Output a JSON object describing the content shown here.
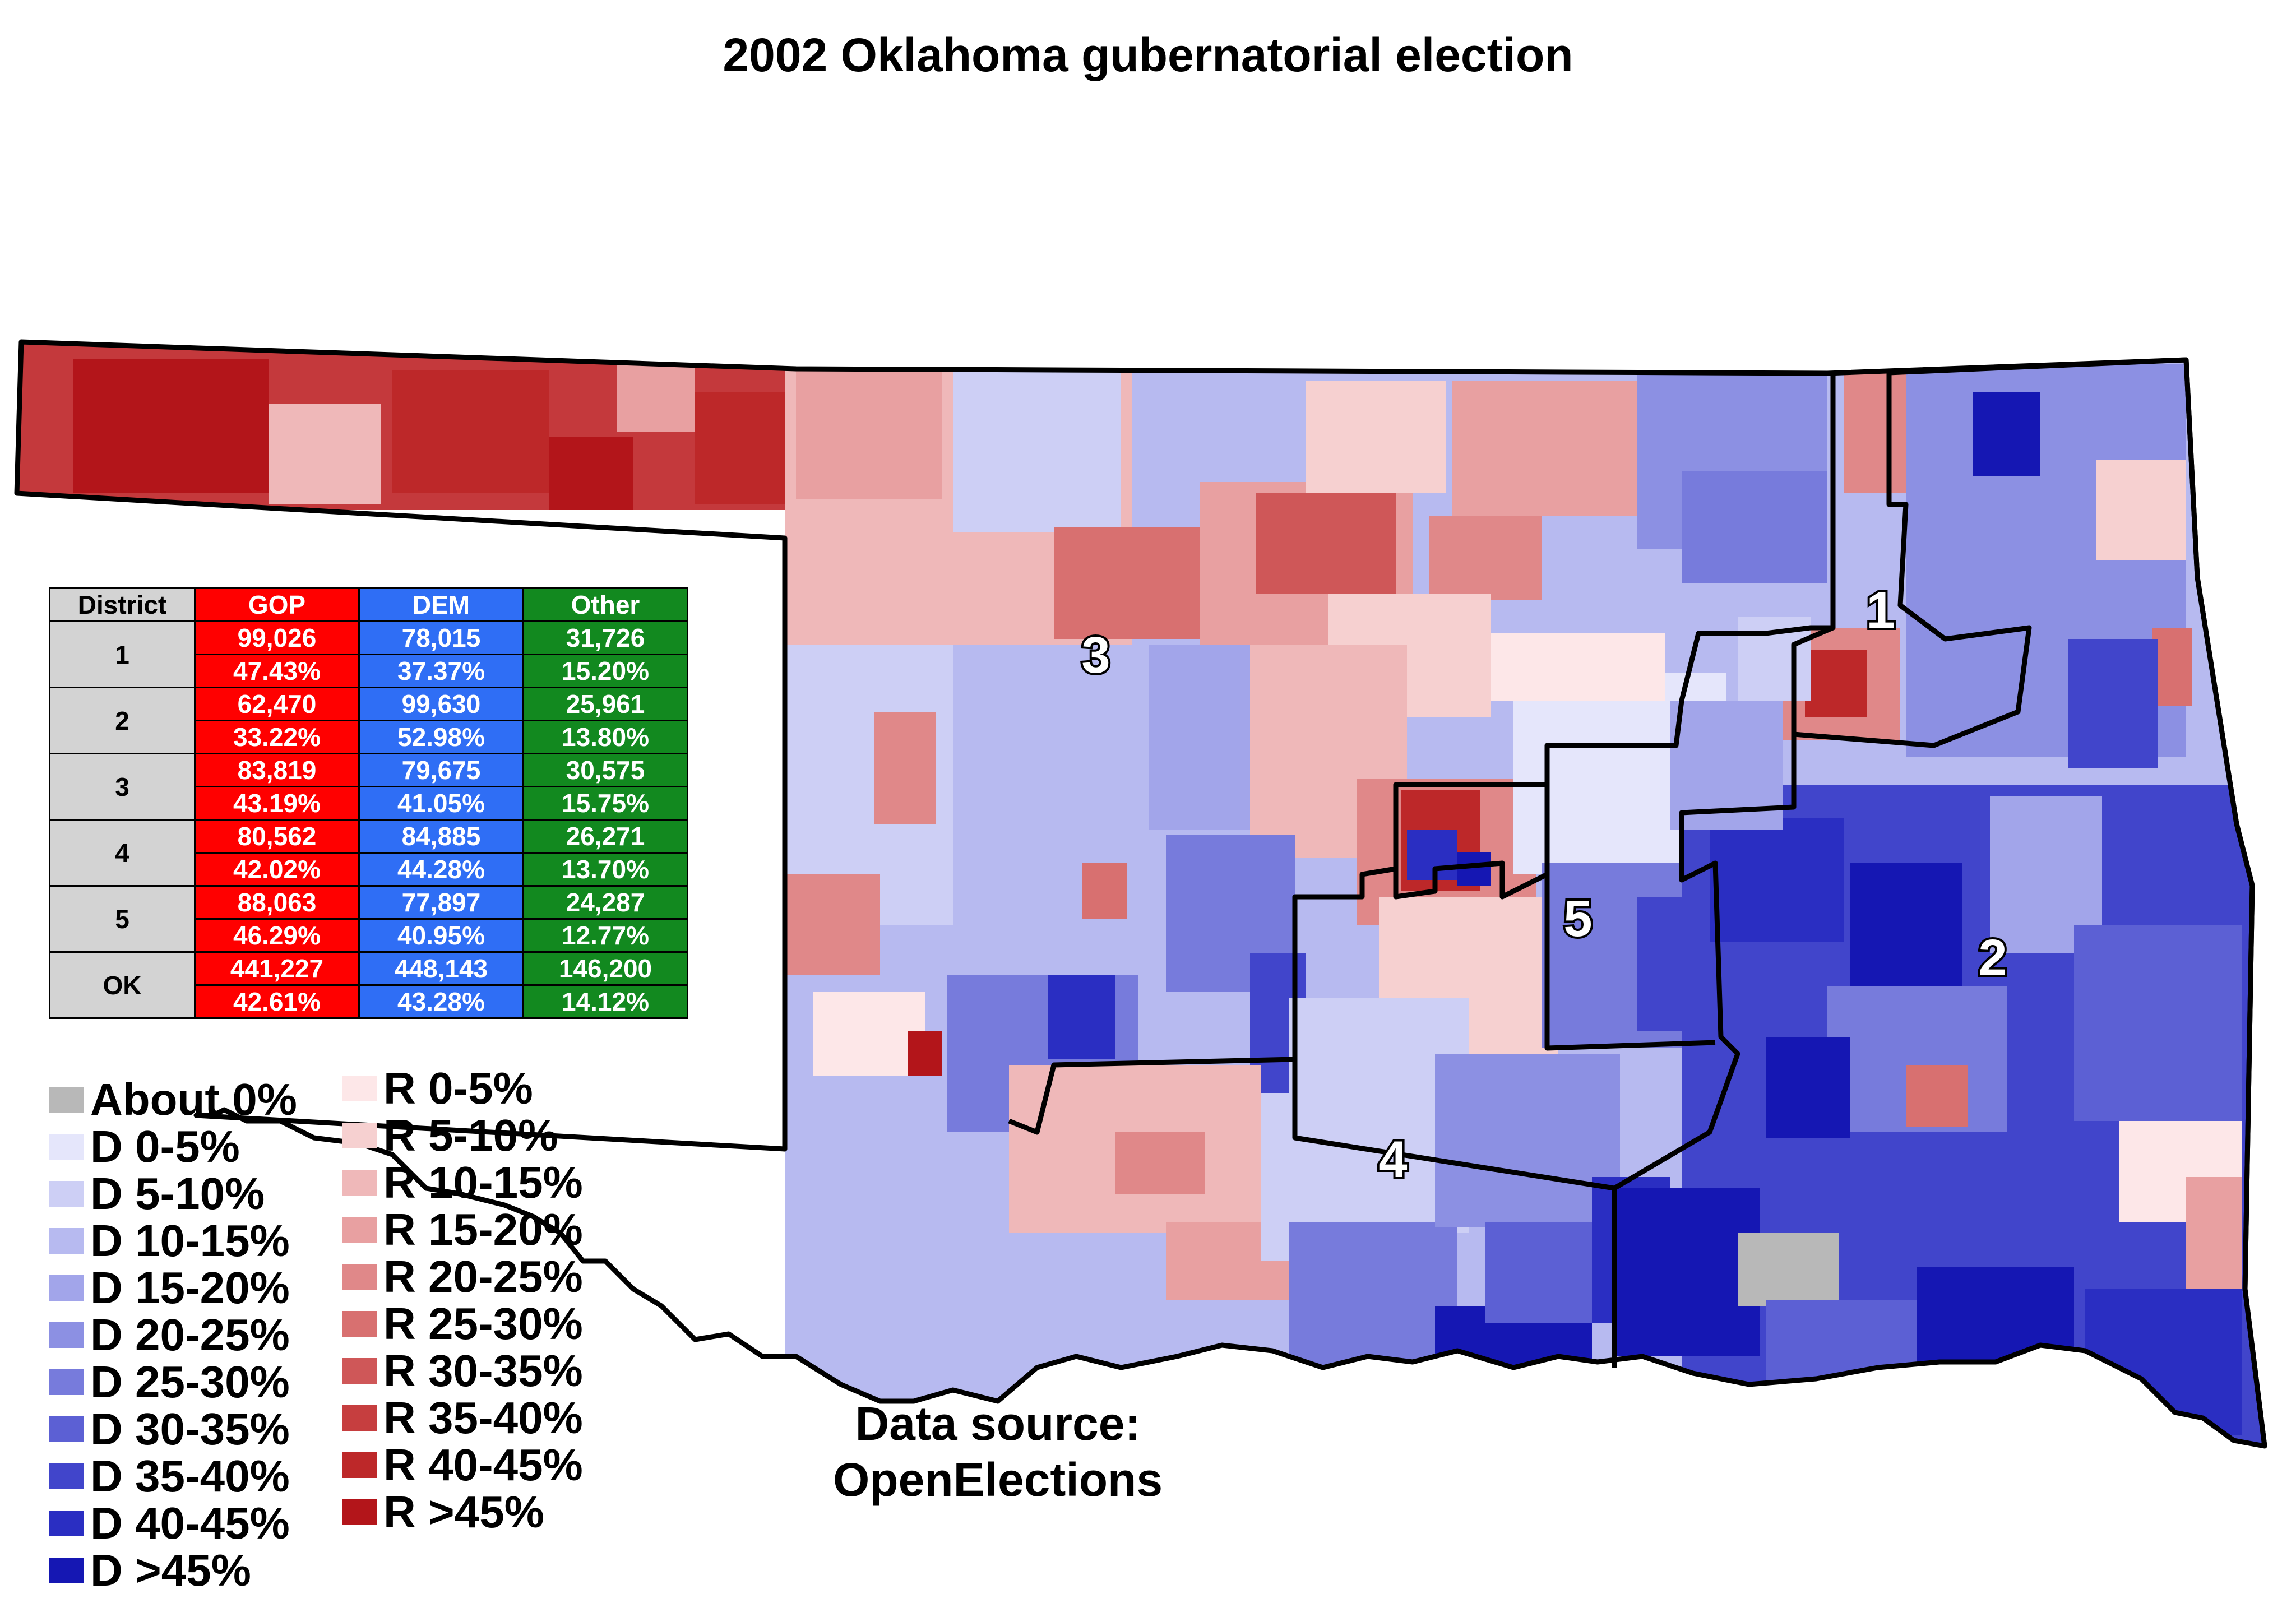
{
  "title": "2002 Oklahoma gubernatorial election",
  "table": {
    "headers": {
      "district": "District",
      "gop": "GOP",
      "dem": "DEM",
      "other": "Other"
    },
    "rows": [
      {
        "district": "1",
        "gop_votes": "99,026",
        "gop_pct": "47.43%",
        "dem_votes": "78,015",
        "dem_pct": "37.37%",
        "other_votes": "31,726",
        "other_pct": "15.20%"
      },
      {
        "district": "2",
        "gop_votes": "62,470",
        "gop_pct": "33.22%",
        "dem_votes": "99,630",
        "dem_pct": "52.98%",
        "other_votes": "25,961",
        "other_pct": "13.80%"
      },
      {
        "district": "3",
        "gop_votes": "83,819",
        "gop_pct": "43.19%",
        "dem_votes": "79,675",
        "dem_pct": "41.05%",
        "other_votes": "30,575",
        "other_pct": "15.75%"
      },
      {
        "district": "4",
        "gop_votes": "80,562",
        "gop_pct": "42.02%",
        "dem_votes": "84,885",
        "dem_pct": "44.28%",
        "other_votes": "26,271",
        "other_pct": "13.70%"
      },
      {
        "district": "5",
        "gop_votes": "88,063",
        "gop_pct": "46.29%",
        "dem_votes": "77,897",
        "dem_pct": "40.95%",
        "other_votes": "24,287",
        "other_pct": "12.77%"
      },
      {
        "district": "OK",
        "gop_votes": "441,227",
        "gop_pct": "42.61%",
        "dem_votes": "448,143",
        "dem_pct": "43.28%",
        "other_votes": "146,200",
        "other_pct": "14.12%"
      }
    ]
  },
  "legend": {
    "dem": [
      {
        "label": "About 0%",
        "color": "#b8b8b8"
      },
      {
        "label": "D 0-5%",
        "color": "#e5e6fb"
      },
      {
        "label": "D 5-10%",
        "color": "#cdcff5"
      },
      {
        "label": "D 10-15%",
        "color": "#b7baf0"
      },
      {
        "label": "D 15-20%",
        "color": "#a2a5ea"
      },
      {
        "label": "D 20-25%",
        "color": "#8c90e3"
      },
      {
        "label": "D 25-30%",
        "color": "#777bdc"
      },
      {
        "label": "D 30-35%",
        "color": "#5c60d4"
      },
      {
        "label": "D 35-40%",
        "color": "#4145cb"
      },
      {
        "label": "D 40-45%",
        "color": "#2a2ec2"
      },
      {
        "label": "D >45%",
        "color": "#1517b3"
      }
    ],
    "rep": [
      {
        "label": "R 0-5%",
        "color": "#fde7e8"
      },
      {
        "label": "R 5-10%",
        "color": "#f6d0d0"
      },
      {
        "label": "R 10-15%",
        "color": "#efb8b9"
      },
      {
        "label": "R 15-20%",
        "color": "#e8a0a1"
      },
      {
        "label": "R 20-25%",
        "color": "#e08889"
      },
      {
        "label": "R 25-30%",
        "color": "#d87070"
      },
      {
        "label": "R 30-35%",
        "color": "#cf5758"
      },
      {
        "label": "R 35-40%",
        "color": "#c63e3f"
      },
      {
        "label": "R 40-45%",
        "color": "#bd2829"
      },
      {
        "label": "R >45%",
        "color": "#b3151a"
      }
    ]
  },
  "districts": [
    {
      "label": "1"
    },
    {
      "label": "2"
    },
    {
      "label": "3"
    },
    {
      "label": "4"
    },
    {
      "label": "5"
    }
  ],
  "source": {
    "line1": "Data source:",
    "line2": "OpenElections"
  }
}
